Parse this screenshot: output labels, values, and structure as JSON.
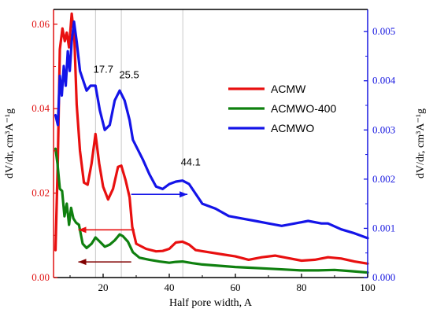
{
  "chart_data": {
    "type": "line",
    "x_axis": {
      "label": "Half pore width, A",
      "range": [
        5,
        100
      ],
      "ticks": [
        "20",
        "40",
        "60",
        "80",
        "100"
      ],
      "tick_values": [
        20,
        40,
        60,
        80,
        100
      ]
    },
    "y_left": {
      "label": "dV/dr, cm³A⁻¹g",
      "range": [
        0,
        0.0635
      ],
      "ticks": [
        "0.00",
        "0.02",
        "0.04",
        "0.06"
      ],
      "tick_values": [
        0,
        0.02,
        0.04,
        0.06
      ],
      "color": "#e01010"
    },
    "y_right": {
      "label": "dV/dr, cm³A⁻¹g",
      "range": [
        0,
        0.00545
      ],
      "ticks": [
        "0.000",
        "0.001",
        "0.002",
        "0.003",
        "0.004",
        "0.005"
      ],
      "tick_values": [
        0,
        0.001,
        0.002,
        0.003,
        0.004,
        0.005
      ],
      "color": "#1818e0"
    },
    "vertical_gridlines_at": [
      17.7,
      25.5,
      44.1
    ],
    "annotations": [
      {
        "text": "17.7",
        "x": 17.7,
        "y_left": 0.0485
      },
      {
        "text": "25.5",
        "x": 25.5,
        "y_left": 0.0472
      },
      {
        "text": "44.1",
        "x": 44.1,
        "y_left": 0.0265
      }
    ],
    "legend": {
      "position": "upper-right",
      "entries": [
        {
          "name": "ACMW",
          "color": "#e81010"
        },
        {
          "name": "ACMWO-400",
          "color": "#0f800f"
        },
        {
          "name": "ACMWO",
          "color": "#1414e8"
        }
      ]
    },
    "series": [
      {
        "name": "ACMW",
        "axis": "left",
        "color": "#e81010",
        "points": [
          [
            5.6,
            0.0065
          ],
          [
            6.3,
            0.028
          ],
          [
            6.9,
            0.054
          ],
          [
            7.7,
            0.059
          ],
          [
            8.4,
            0.056
          ],
          [
            9.0,
            0.058
          ],
          [
            9.7,
            0.0545
          ],
          [
            10.5,
            0.0625
          ],
          [
            11.3,
            0.0565
          ],
          [
            12.0,
            0.041
          ],
          [
            13.0,
            0.03
          ],
          [
            14.2,
            0.0225
          ],
          [
            15.3,
            0.022
          ],
          [
            16.5,
            0.027
          ],
          [
            17.7,
            0.034
          ],
          [
            18.8,
            0.027
          ],
          [
            20.0,
            0.0215
          ],
          [
            21.5,
            0.0185
          ],
          [
            23.0,
            0.021
          ],
          [
            24.5,
            0.0262
          ],
          [
            25.5,
            0.0265
          ],
          [
            26.8,
            0.023
          ],
          [
            28.0,
            0.019
          ],
          [
            28.8,
            0.012
          ],
          [
            30,
            0.008
          ],
          [
            33,
            0.0068
          ],
          [
            36,
            0.0062
          ],
          [
            38,
            0.0063
          ],
          [
            40,
            0.0068
          ],
          [
            42,
            0.0083
          ],
          [
            44,
            0.0085
          ],
          [
            46,
            0.0078
          ],
          [
            48,
            0.0065
          ],
          [
            52,
            0.006
          ],
          [
            56,
            0.0055
          ],
          [
            60,
            0.005
          ],
          [
            64,
            0.0042
          ],
          [
            68,
            0.0048
          ],
          [
            72,
            0.0052
          ],
          [
            76,
            0.0046
          ],
          [
            80,
            0.004
          ],
          [
            84,
            0.0042
          ],
          [
            88,
            0.0048
          ],
          [
            92,
            0.0045
          ],
          [
            96,
            0.0038
          ],
          [
            100,
            0.0033
          ]
        ]
      },
      {
        "name": "ACMWO-400",
        "axis": "left",
        "color": "#0f800f",
        "points": [
          [
            5.6,
            0.0305
          ],
          [
            6.2,
            0.027
          ],
          [
            6.9,
            0.021
          ],
          [
            7.6,
            0.0205
          ],
          [
            8.3,
            0.0145
          ],
          [
            9.0,
            0.0175
          ],
          [
            9.7,
            0.0125
          ],
          [
            10.3,
            0.0165
          ],
          [
            11.0,
            0.014
          ],
          [
            11.8,
            0.013
          ],
          [
            12.7,
            0.0125
          ],
          [
            13.8,
            0.008
          ],
          [
            15.0,
            0.007
          ],
          [
            16.5,
            0.008
          ],
          [
            17.7,
            0.0095
          ],
          [
            19.0,
            0.0085
          ],
          [
            20.5,
            0.0073
          ],
          [
            22.0,
            0.0078
          ],
          [
            23.5,
            0.0088
          ],
          [
            25.0,
            0.0102
          ],
          [
            26.0,
            0.0098
          ],
          [
            27.5,
            0.0085
          ],
          [
            29.0,
            0.006
          ],
          [
            31,
            0.0047
          ],
          [
            34,
            0.0042
          ],
          [
            37,
            0.0038
          ],
          [
            40,
            0.0035
          ],
          [
            42,
            0.0037
          ],
          [
            44,
            0.0038
          ],
          [
            47,
            0.0034
          ],
          [
            50,
            0.0031
          ],
          [
            55,
            0.0028
          ],
          [
            60,
            0.0025
          ],
          [
            65,
            0.0023
          ],
          [
            70,
            0.0021
          ],
          [
            75,
            0.0019
          ],
          [
            80,
            0.0017
          ],
          [
            85,
            0.0017
          ],
          [
            90,
            0.0018
          ],
          [
            95,
            0.0015
          ],
          [
            100,
            0.0012
          ]
        ]
      },
      {
        "name": "ACMWO",
        "axis": "right",
        "color": "#1414e8",
        "points": [
          [
            5.6,
            0.0033
          ],
          [
            6.3,
            0.0031
          ],
          [
            6.9,
            0.0041
          ],
          [
            7.5,
            0.0037
          ],
          [
            8.1,
            0.0043
          ],
          [
            8.7,
            0.0039
          ],
          [
            9.3,
            0.0046
          ],
          [
            9.9,
            0.0042
          ],
          [
            10.5,
            0.0048
          ],
          [
            11.2,
            0.0052
          ],
          [
            12.0,
            0.0048
          ],
          [
            13.0,
            0.0042
          ],
          [
            14.0,
            0.004
          ],
          [
            15.0,
            0.0038
          ],
          [
            16.2,
            0.0039
          ],
          [
            17.7,
            0.0039
          ],
          [
            19.0,
            0.0034
          ],
          [
            20.5,
            0.003
          ],
          [
            22.0,
            0.0031
          ],
          [
            23.5,
            0.0036
          ],
          [
            25.0,
            0.0038
          ],
          [
            26.5,
            0.0036
          ],
          [
            28.0,
            0.0032
          ],
          [
            29.0,
            0.0028
          ],
          [
            30.5,
            0.0026
          ],
          [
            32,
            0.0024
          ],
          [
            34,
            0.0021
          ],
          [
            36,
            0.00185
          ],
          [
            38,
            0.0018
          ],
          [
            40,
            0.0019
          ],
          [
            42,
            0.00195
          ],
          [
            44,
            0.00197
          ],
          [
            46,
            0.0019
          ],
          [
            48,
            0.0017
          ],
          [
            50,
            0.0015
          ],
          [
            54,
            0.0014
          ],
          [
            58,
            0.00125
          ],
          [
            62,
            0.0012
          ],
          [
            66,
            0.00115
          ],
          [
            70,
            0.0011
          ],
          [
            74,
            0.00105
          ],
          [
            78,
            0.0011
          ],
          [
            82,
            0.00115
          ],
          [
            86,
            0.0011
          ],
          [
            88,
            0.0011
          ],
          [
            92,
            0.00098
          ],
          [
            96,
            0.0009
          ],
          [
            100,
            0.0008
          ]
        ]
      }
    ],
    "arrows": [
      {
        "series": "ACMWO",
        "direction": "right",
        "x_from": 28.5,
        "x_to": 45.5,
        "y_left": 0.0197
      },
      {
        "series": "ACMW",
        "direction": "left",
        "x_from": 29.5,
        "x_to": 12.5,
        "y_left": 0.0113
      },
      {
        "series": "ACMWO-400",
        "direction": "left",
        "x_from": 28.5,
        "x_to": 12.5,
        "y_left": 0.0037
      }
    ]
  }
}
